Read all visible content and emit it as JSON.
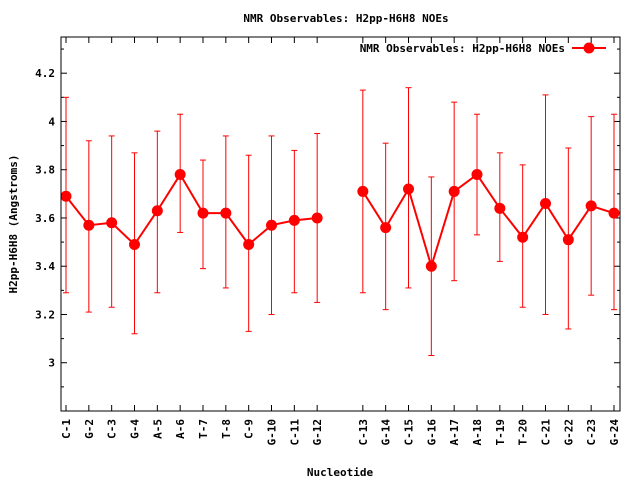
{
  "chart_data": {
    "type": "line",
    "title": "NMR Observables: H2pp-H6H8 NOEs",
    "xlabel": "Nucleotide",
    "ylabel": "H2pp-H6H8 (Angstroms)",
    "ylim": [
      2.8,
      4.35
    ],
    "yticks": [
      3,
      3.2,
      3.4,
      3.6,
      3.8,
      4,
      4.2
    ],
    "ytick_labels": [
      "3",
      "3.2",
      "3.4",
      "3.6",
      "3.8",
      "4",
      "4.2"
    ],
    "xlim": [
      1,
      25
    ],
    "grid": false,
    "legend_position": "top-right",
    "series": [
      {
        "name": "NMR Observables: H2pp-H6H8 NOEs",
        "color": "#ff0000",
        "segments": [
          [
            {
              "x": 1,
              "label": "C-1",
              "y": 3.69,
              "lo": 3.29,
              "hi": 4.1
            },
            {
              "x": 2,
              "label": "G-2",
              "y": 3.57,
              "lo": 3.21,
              "hi": 3.92
            },
            {
              "x": 3,
              "label": "C-3",
              "y": 3.58,
              "lo": 3.23,
              "hi": 3.94
            },
            {
              "x": 4,
              "label": "G-4",
              "y": 3.49,
              "lo": 3.12,
              "hi": 3.87
            },
            {
              "x": 5,
              "label": "A-5",
              "y": 3.63,
              "lo": 3.29,
              "hi": 3.96
            },
            {
              "x": 6,
              "label": "A-6",
              "y": 3.78,
              "lo": 3.54,
              "hi": 4.03
            },
            {
              "x": 7,
              "label": "T-7",
              "y": 3.62,
              "lo": 3.39,
              "hi": 3.84
            },
            {
              "x": 8,
              "label": "T-8",
              "y": 3.62,
              "lo": 3.31,
              "hi": 3.94
            },
            {
              "x": 9,
              "label": "C-9",
              "y": 3.49,
              "lo": 3.13,
              "hi": 3.86
            },
            {
              "x": 10,
              "label": "G-10",
              "y": 3.57,
              "lo": 3.2,
              "hi": 3.94
            },
            {
              "x": 11,
              "label": "C-11",
              "y": 3.59,
              "lo": 3.29,
              "hi": 3.88
            },
            {
              "x": 12,
              "label": "G-12",
              "y": 3.6,
              "lo": 3.25,
              "hi": 3.95
            }
          ],
          [
            {
              "x": 14,
              "label": "C-13",
              "y": 3.71,
              "lo": 3.29,
              "hi": 4.13
            },
            {
              "x": 15,
              "label": "G-14",
              "y": 3.56,
              "lo": 3.22,
              "hi": 3.91
            },
            {
              "x": 16,
              "label": "C-15",
              "y": 3.72,
              "lo": 3.31,
              "hi": 4.14
            },
            {
              "x": 17,
              "label": "G-16",
              "y": 3.4,
              "lo": 3.03,
              "hi": 3.77
            },
            {
              "x": 18,
              "label": "A-17",
              "y": 3.71,
              "lo": 3.34,
              "hi": 4.08
            },
            {
              "x": 19,
              "label": "A-18",
              "y": 3.78,
              "lo": 3.53,
              "hi": 4.03
            },
            {
              "x": 20,
              "label": "T-19",
              "y": 3.64,
              "lo": 3.42,
              "hi": 3.87
            },
            {
              "x": 21,
              "label": "T-20",
              "y": 3.52,
              "lo": 3.23,
              "hi": 3.82
            },
            {
              "x": 22,
              "label": "C-21",
              "y": 3.66,
              "lo": 3.2,
              "hi": 4.11
            },
            {
              "x": 23,
              "label": "G-22",
              "y": 3.51,
              "lo": 3.14,
              "hi": 3.89
            },
            {
              "x": 24,
              "label": "C-23",
              "y": 3.65,
              "lo": 3.28,
              "hi": 4.02
            },
            {
              "x": 25,
              "label": "G-24",
              "y": 3.62,
              "lo": 3.22,
              "hi": 4.03
            }
          ]
        ]
      }
    ]
  }
}
